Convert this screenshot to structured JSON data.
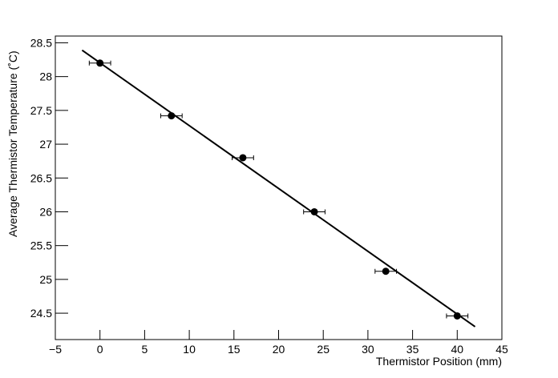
{
  "chart_data": {
    "type": "scatter",
    "x_label": "Thermistor Position (mm)",
    "y_label": "Average Thermistor Temperature (˚C)",
    "x": [
      0,
      8,
      16,
      24,
      32,
      40
    ],
    "values": [
      28.2,
      27.42,
      26.8,
      26.0,
      25.12,
      24.46
    ],
    "xerr": [
      1.2,
      1.2,
      1.2,
      1.2,
      1.2,
      1.2
    ],
    "color": "#000000",
    "fit": {
      "x": [
        -2,
        42
      ],
      "y": [
        28.39,
        24.3
      ],
      "color": "#000000"
    },
    "xlim": [
      -5,
      45
    ],
    "ylim": [
      24.11,
      28.6
    ],
    "xticks": [
      {
        "value": -5,
        "label": "−5"
      },
      0,
      5,
      10,
      15,
      20,
      25,
      30,
      35,
      40,
      45
    ],
    "yticks": [
      24.5,
      25,
      25.5,
      26,
      26.5,
      27,
      27.5,
      28,
      28.5
    ],
    "grid": false
  }
}
